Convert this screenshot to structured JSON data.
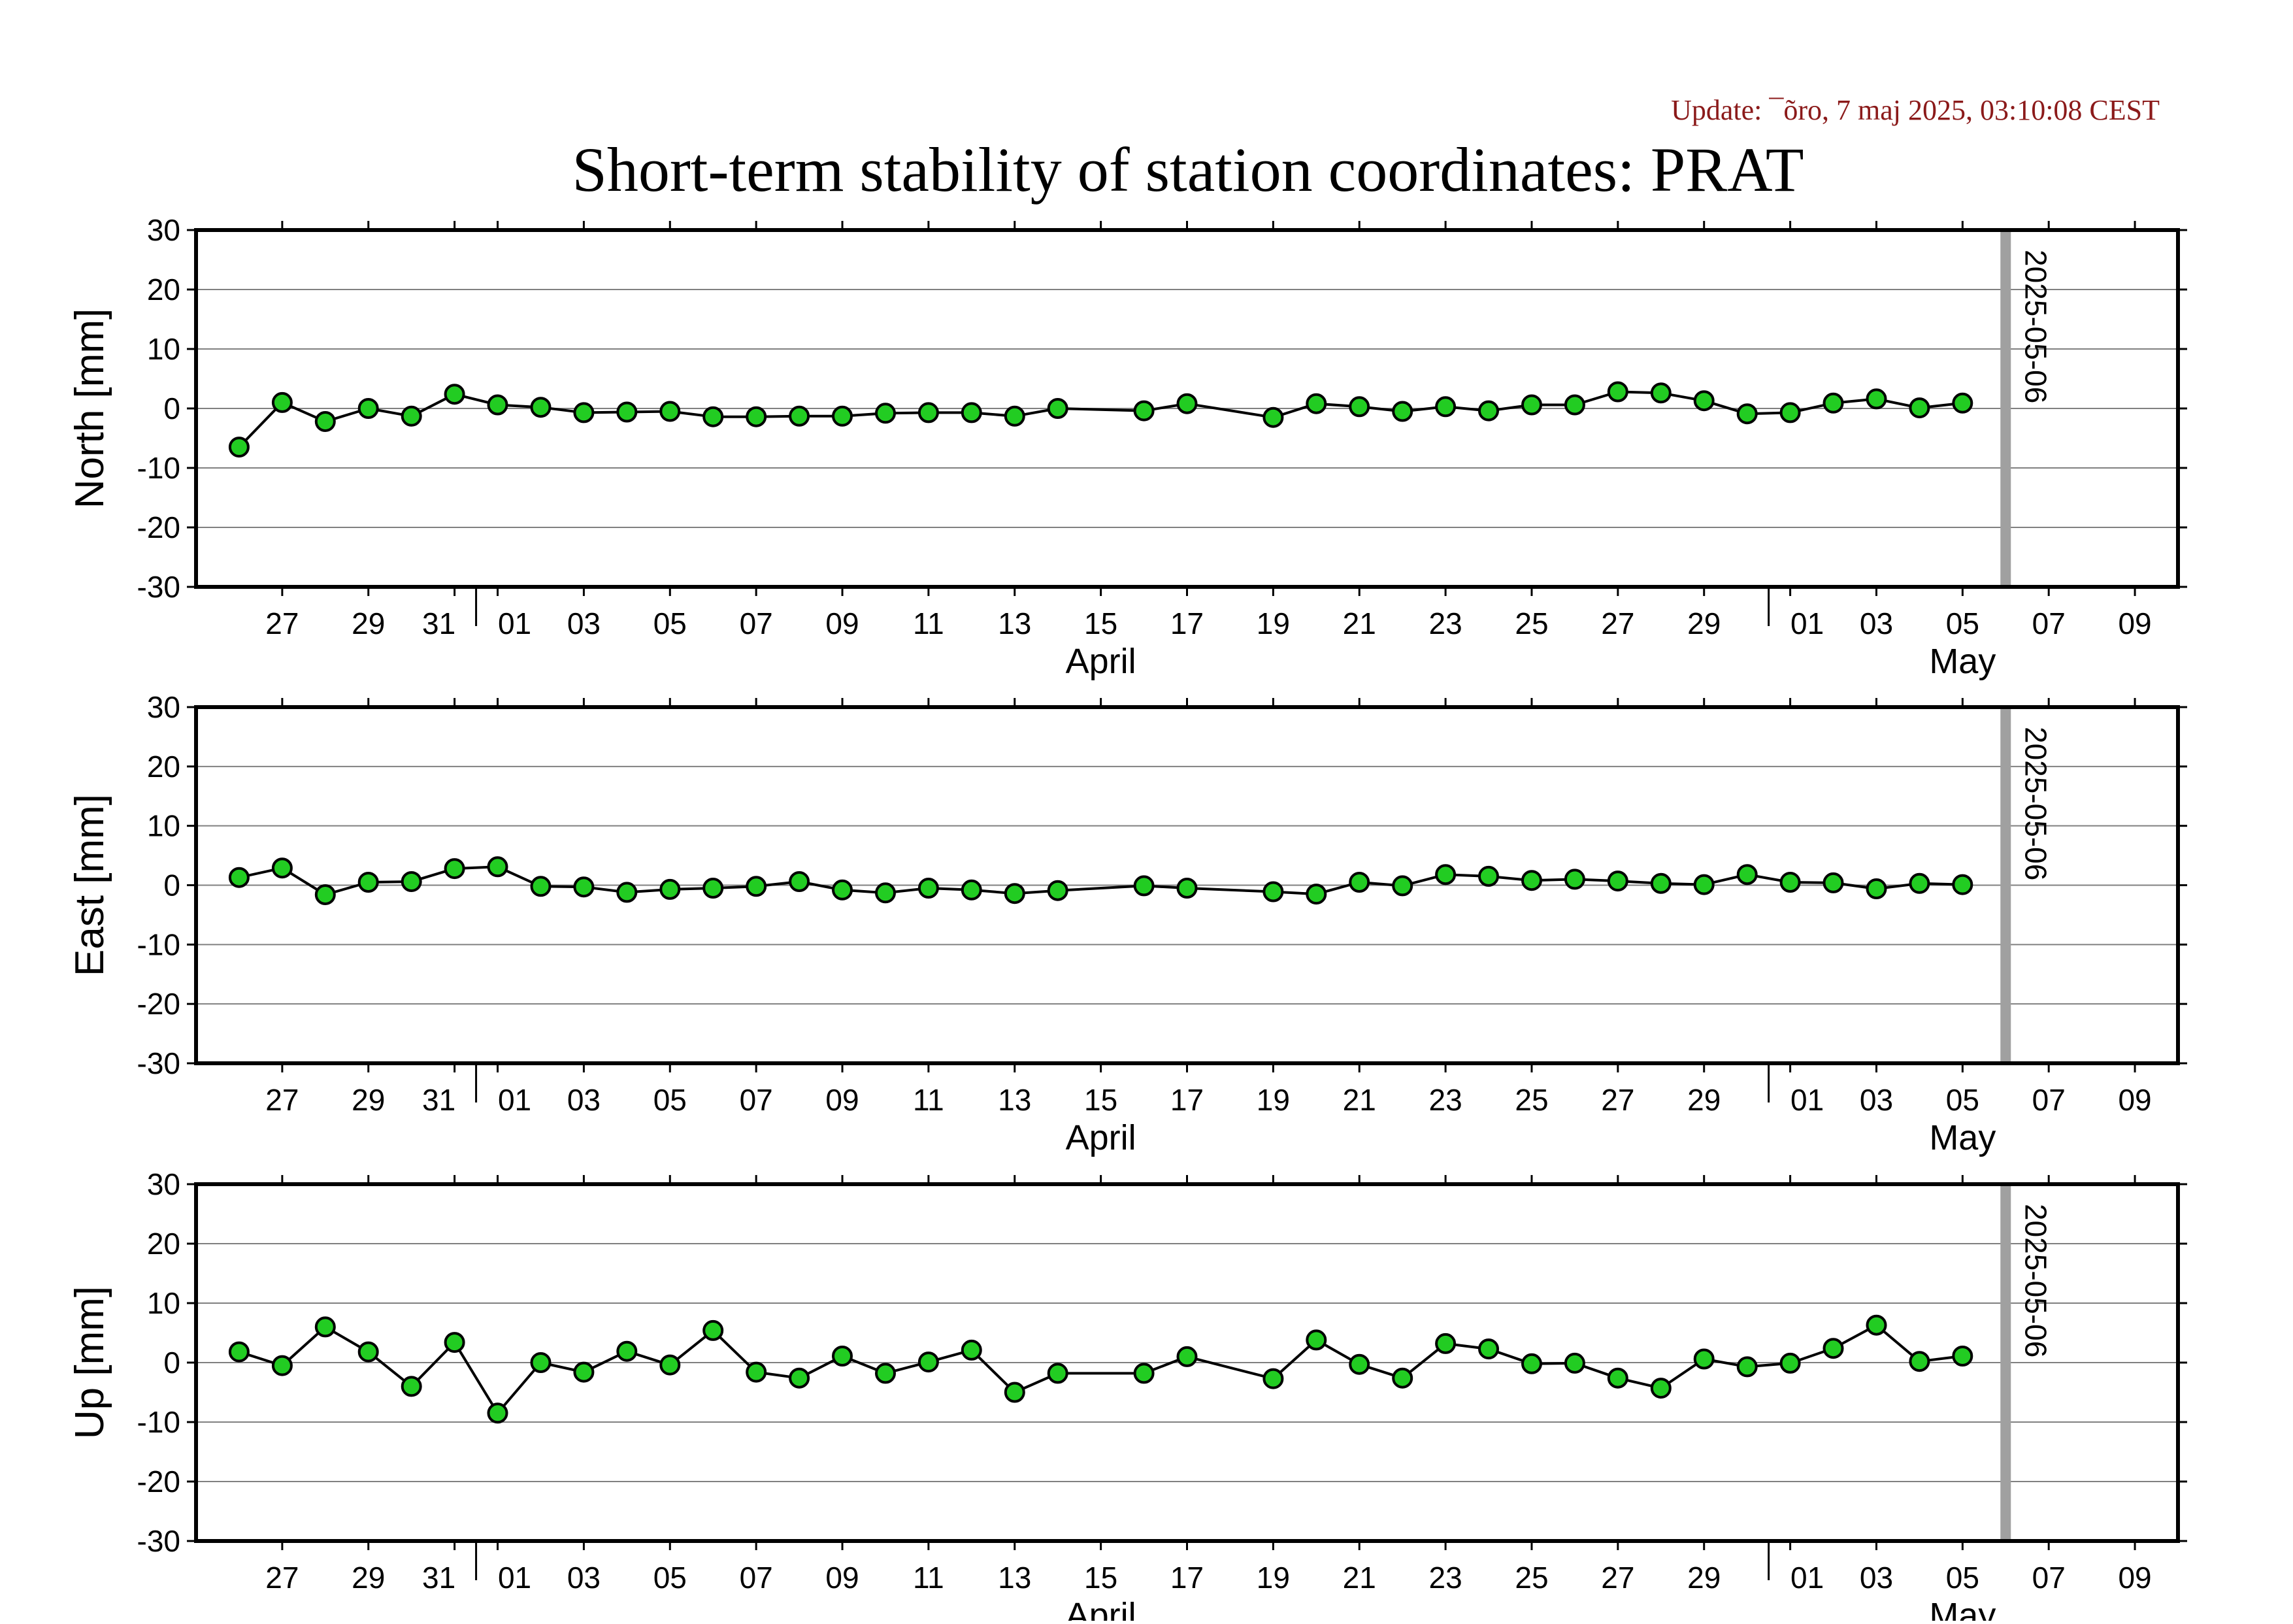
{
  "update_text": "Update: ¯õro, 7 maj 2025, 03:10:08 CEST",
  "title": "Short-term stability of station coordinates: PRAT",
  "marker_label": "2025-05-06",
  "colors": {
    "point_fill": "#22cc22",
    "point_stroke": "#000000",
    "line": "#000000",
    "gridline": "#808080",
    "marker_line": "#a0a0a0",
    "update_text": "#8b1a1a"
  },
  "chart_data": [
    {
      "type": "line",
      "ylabel": "North [mm]",
      "ylim": [
        -30,
        30
      ],
      "yticks": [
        30,
        20,
        10,
        0,
        -10,
        -20,
        -30
      ],
      "grid": true,
      "xlim": [
        "2025-03-25",
        "2025-05-10"
      ],
      "x_tick_dates": [
        "2025-03-27",
        "2025-03-29",
        "2025-03-31",
        "2025-04-01",
        "2025-04-03",
        "2025-04-05",
        "2025-04-07",
        "2025-04-09",
        "2025-04-11",
        "2025-04-13",
        "2025-04-15",
        "2025-04-17",
        "2025-04-19",
        "2025-04-21",
        "2025-04-23",
        "2025-04-25",
        "2025-04-27",
        "2025-04-29",
        "2025-05-01",
        "2025-05-03",
        "2025-05-05",
        "2025-05-07",
        "2025-05-09"
      ],
      "x_tick_labels": [
        "27",
        "29",
        "31",
        "01",
        "03",
        "05",
        "07",
        "09",
        "11",
        "13",
        "15",
        "17",
        "19",
        "21",
        "23",
        "25",
        "27",
        "29",
        "01",
        "03",
        "05",
        "07",
        "09"
      ],
      "month_labels": [
        {
          "date": "2025-04-15",
          "label": "April"
        },
        {
          "date": "2025-05-05",
          "label": "May"
        }
      ],
      "marker_date": "2025-05-06",
      "series": [
        {
          "x": [
            "2025-03-26",
            "2025-03-27",
            "2025-03-28",
            "2025-03-29",
            "2025-03-30",
            "2025-03-31",
            "2025-04-01",
            "2025-04-02",
            "2025-04-03",
            "2025-04-04",
            "2025-04-05",
            "2025-04-06",
            "2025-04-07",
            "2025-04-08",
            "2025-04-09",
            "2025-04-10",
            "2025-04-11",
            "2025-04-12",
            "2025-04-13",
            "2025-04-14",
            "2025-04-16",
            "2025-04-17",
            "2025-04-19",
            "2025-04-20",
            "2025-04-21",
            "2025-04-22",
            "2025-04-23",
            "2025-04-24",
            "2025-04-25",
            "2025-04-26",
            "2025-04-27",
            "2025-04-28",
            "2025-04-29",
            "2025-04-30",
            "2025-05-01",
            "2025-05-02",
            "2025-05-03",
            "2025-05-04",
            "2025-05-05"
          ],
          "y": [
            -6.5,
            1.0,
            -2.2,
            0.0,
            -1.3,
            2.4,
            0.6,
            0.2,
            -0.7,
            -0.6,
            -0.5,
            -1.4,
            -1.4,
            -1.3,
            -1.3,
            -0.8,
            -0.7,
            -0.7,
            -1.3,
            0.0,
            -0.4,
            0.8,
            -1.5,
            0.8,
            0.3,
            -0.5,
            0.3,
            -0.4,
            0.6,
            0.6,
            2.8,
            2.6,
            1.3,
            -0.9,
            -0.7,
            0.9,
            1.6,
            0.1,
            0.9
          ]
        }
      ]
    },
    {
      "type": "line",
      "ylabel": "East [mm]",
      "ylim": [
        -30,
        30
      ],
      "yticks": [
        30,
        20,
        10,
        0,
        -10,
        -20,
        -30
      ],
      "grid": true,
      "xlim": [
        "2025-03-25",
        "2025-05-10"
      ],
      "x_tick_dates": [
        "2025-03-27",
        "2025-03-29",
        "2025-03-31",
        "2025-04-01",
        "2025-04-03",
        "2025-04-05",
        "2025-04-07",
        "2025-04-09",
        "2025-04-11",
        "2025-04-13",
        "2025-04-15",
        "2025-04-17",
        "2025-04-19",
        "2025-04-21",
        "2025-04-23",
        "2025-04-25",
        "2025-04-27",
        "2025-04-29",
        "2025-05-01",
        "2025-05-03",
        "2025-05-05",
        "2025-05-07",
        "2025-05-09"
      ],
      "x_tick_labels": [
        "27",
        "29",
        "31",
        "01",
        "03",
        "05",
        "07",
        "09",
        "11",
        "13",
        "15",
        "17",
        "19",
        "21",
        "23",
        "25",
        "27",
        "29",
        "01",
        "03",
        "05",
        "07",
        "09"
      ],
      "month_labels": [
        {
          "date": "2025-04-15",
          "label": "April"
        },
        {
          "date": "2025-05-05",
          "label": "May"
        }
      ],
      "marker_date": "2025-05-06",
      "series": [
        {
          "x": [
            "2025-03-26",
            "2025-03-27",
            "2025-03-28",
            "2025-03-29",
            "2025-03-30",
            "2025-03-31",
            "2025-04-01",
            "2025-04-02",
            "2025-04-03",
            "2025-04-04",
            "2025-04-05",
            "2025-04-06",
            "2025-04-07",
            "2025-04-08",
            "2025-04-09",
            "2025-04-10",
            "2025-04-11",
            "2025-04-12",
            "2025-04-13",
            "2025-04-14",
            "2025-04-16",
            "2025-04-17",
            "2025-04-19",
            "2025-04-20",
            "2025-04-21",
            "2025-04-22",
            "2025-04-23",
            "2025-04-24",
            "2025-04-25",
            "2025-04-26",
            "2025-04-27",
            "2025-04-28",
            "2025-04-29",
            "2025-04-30",
            "2025-05-01",
            "2025-05-02",
            "2025-05-03",
            "2025-05-04",
            "2025-05-05"
          ],
          "y": [
            1.3,
            2.9,
            -1.6,
            0.5,
            0.6,
            2.8,
            3.1,
            -0.2,
            -0.3,
            -1.2,
            -0.7,
            -0.5,
            -0.2,
            0.6,
            -0.8,
            -1.3,
            -0.5,
            -0.8,
            -1.4,
            -0.9,
            -0.1,
            -0.5,
            -1.1,
            -1.5,
            0.5,
            -0.1,
            1.8,
            1.5,
            0.8,
            1.0,
            0.7,
            0.3,
            0.1,
            1.8,
            0.5,
            0.4,
            -0.6,
            0.3,
            0.1
          ]
        }
      ]
    },
    {
      "type": "line",
      "ylabel": "Up [mm]",
      "ylim": [
        -30,
        30
      ],
      "yticks": [
        30,
        20,
        10,
        0,
        -10,
        -20,
        -30
      ],
      "grid": true,
      "xlim": [
        "2025-03-25",
        "2025-05-10"
      ],
      "x_tick_dates": [
        "2025-03-27",
        "2025-03-29",
        "2025-03-31",
        "2025-04-01",
        "2025-04-03",
        "2025-04-05",
        "2025-04-07",
        "2025-04-09",
        "2025-04-11",
        "2025-04-13",
        "2025-04-15",
        "2025-04-17",
        "2025-04-19",
        "2025-04-21",
        "2025-04-23",
        "2025-04-25",
        "2025-04-27",
        "2025-04-29",
        "2025-05-01",
        "2025-05-03",
        "2025-05-05",
        "2025-05-07",
        "2025-05-09"
      ],
      "x_tick_labels": [
        "27",
        "29",
        "31",
        "01",
        "03",
        "05",
        "07",
        "09",
        "11",
        "13",
        "15",
        "17",
        "19",
        "21",
        "23",
        "25",
        "27",
        "29",
        "01",
        "03",
        "05",
        "07",
        "09"
      ],
      "month_labels": [
        {
          "date": "2025-04-15",
          "label": "April"
        },
        {
          "date": "2025-05-05",
          "label": "May"
        }
      ],
      "marker_date": "2025-05-06",
      "series": [
        {
          "x": [
            "2025-03-26",
            "2025-03-27",
            "2025-03-28",
            "2025-03-29",
            "2025-03-30",
            "2025-03-31",
            "2025-04-01",
            "2025-04-02",
            "2025-04-03",
            "2025-04-04",
            "2025-04-05",
            "2025-04-06",
            "2025-04-07",
            "2025-04-08",
            "2025-04-09",
            "2025-04-10",
            "2025-04-11",
            "2025-04-12",
            "2025-04-13",
            "2025-04-14",
            "2025-04-16",
            "2025-04-17",
            "2025-04-19",
            "2025-04-20",
            "2025-04-21",
            "2025-04-22",
            "2025-04-23",
            "2025-04-24",
            "2025-04-25",
            "2025-04-26",
            "2025-04-27",
            "2025-04-28",
            "2025-04-29",
            "2025-04-30",
            "2025-05-01",
            "2025-05-02",
            "2025-05-03",
            "2025-05-04",
            "2025-05-05"
          ],
          "y": [
            1.8,
            -0.5,
            6.0,
            1.8,
            -4.0,
            3.4,
            -8.5,
            0.0,
            -1.6,
            1.9,
            -0.4,
            5.4,
            -1.6,
            -2.6,
            1.1,
            -1.8,
            0.1,
            2.1,
            -5.0,
            -1.8,
            -1.8,
            1.0,
            -2.7,
            3.8,
            -0.3,
            -2.6,
            3.2,
            2.3,
            -0.2,
            -0.1,
            -2.6,
            -4.3,
            0.6,
            -0.7,
            -0.1,
            2.4,
            6.3,
            0.2,
            1.1
          ]
        }
      ]
    }
  ]
}
